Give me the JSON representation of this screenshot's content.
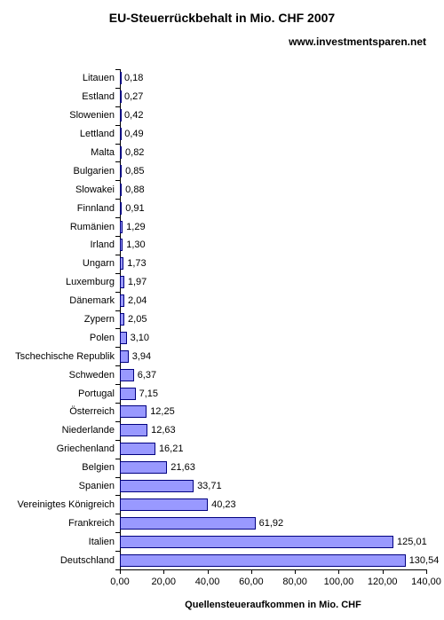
{
  "title": "EU-Steuerrückbehalt in Mio. CHF 2007",
  "title_fontsize": 14,
  "subtitle": "www.investmentsparen.net",
  "subtitle_fontsize": 12,
  "chart": {
    "type": "bar-horizontal",
    "bar_color": "#9999ff",
    "bar_border_color": "#000080",
    "background_color": "#ffffff",
    "xlim": [
      0,
      140
    ],
    "xtick_step": 20,
    "xticks": [
      "0,00",
      "20,00",
      "40,00",
      "60,00",
      "80,00",
      "100,00",
      "120,00",
      "140,00"
    ],
    "xlabel": "Quellensteueraufkommen in Mio. CHF",
    "xlabel_fontsize": 11,
    "label_fontsize": 11,
    "value_fontsize": 11,
    "categories": [
      "Litauen",
      "Estland",
      "Slowenien",
      "Lettland",
      "Malta",
      "Bulgarien",
      "Slowakei",
      "Finnland",
      "Rumänien",
      "Irland",
      "Ungarn",
      "Luxemburg",
      "Dänemark",
      "Zypern",
      "Polen",
      "Tschechische Republik",
      "Schweden",
      "Portugal",
      "Österreich",
      "Niederlande",
      "Griechenland",
      "Belgien",
      "Spanien",
      "Vereinigtes Königreich",
      "Frankreich",
      "Italien",
      "Deutschland"
    ],
    "values": [
      0.18,
      0.27,
      0.42,
      0.49,
      0.82,
      0.85,
      0.88,
      0.91,
      1.29,
      1.3,
      1.73,
      1.97,
      2.04,
      2.05,
      3.1,
      3.94,
      6.37,
      7.15,
      12.25,
      12.63,
      16.21,
      21.63,
      33.71,
      40.23,
      61.92,
      125.01,
      130.54
    ],
    "value_labels": [
      "0,18",
      "0,27",
      "0,42",
      "0,49",
      "0,82",
      "0,85",
      "0,88",
      "0,91",
      "1,29",
      "1,30",
      "1,73",
      "1,97",
      "2,04",
      "2,05",
      "3,10",
      "3,94",
      "6,37",
      "7,15",
      "12,25",
      "12,63",
      "16,21",
      "21,63",
      "33,71",
      "40,23",
      "61,92",
      "125,01",
      "130,54"
    ]
  }
}
